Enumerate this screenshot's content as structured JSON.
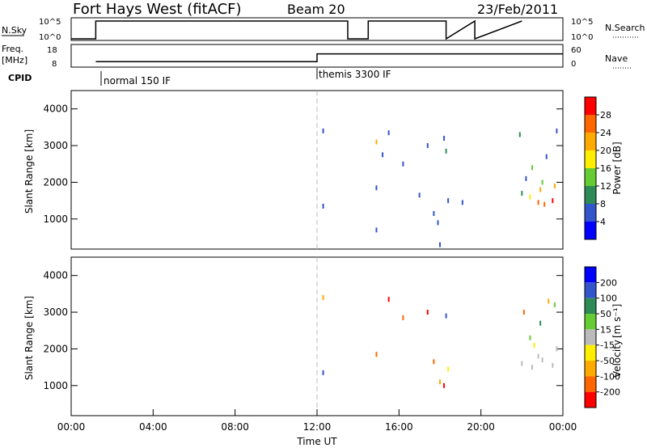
{
  "title": "Fort Hays West (fitACF)",
  "beam": "Beam 20",
  "date": "23/Feb/2011",
  "labels": {
    "nsky": "N.Sky",
    "nsearch": "N.Search",
    "freq": "Freq.",
    "freq_unit": "[MHz]",
    "nave": "Nave",
    "cpid": "CPID",
    "cpid_normal": "normal 150 IF",
    "cpid_themis": "themis 3300 IF",
    "x_axis": "Time UT",
    "y_axis": "Slant Range [km]",
    "power_bar": "Power [dB]",
    "velocity_bar": "Velocity"
  },
  "colors": {
    "power": [
      "#0000ff",
      "#3355cc",
      "#2e8b57",
      "#66cc33",
      "#ffee00",
      "#ffaa00",
      "#ff6600",
      "#ff0000"
    ],
    "velocity": [
      "#ff0000",
      "#ff6600",
      "#ffaa00",
      "#ffee00",
      "#bbbbbb",
      "#66cc33",
      "#2e8b57",
      "#3355cc",
      "#0000ff"
    ]
  },
  "chart_data": [
    {
      "type": "line",
      "name": "N.Sky / N.Search",
      "x_ticks": [
        "00:00",
        "04:00",
        "08:00",
        "12:00",
        "16:00",
        "20:00",
        "00:00"
      ],
      "ylabels_left": [
        "10^5",
        "10^0"
      ],
      "ylabels_right": [
        "10^5",
        "10^0"
      ],
      "x": [
        0,
        1.2,
        1.2,
        13.5,
        13.5,
        14.5,
        14.5,
        18.3,
        18.3,
        19.7,
        19.7,
        22.0
      ],
      "values": [
        0,
        0,
        5,
        5,
        0,
        0,
        5,
        5,
        0,
        5,
        0,
        5
      ]
    },
    {
      "type": "line",
      "name": "Freq / Nave",
      "ylabels_left": [
        "18",
        "8"
      ],
      "ylabels_right": [
        "60",
        "0"
      ],
      "x": [
        1.2,
        12.0,
        12.0,
        13.5,
        14.5,
        18.3,
        19.7,
        22.0,
        24.0
      ],
      "values": [
        10,
        10,
        14,
        14,
        14,
        14,
        14,
        14,
        14
      ]
    },
    {
      "type": "scatter",
      "title": "Power [dB]",
      "xlabel": "Time UT",
      "ylabel": "Slant Range [km]",
      "xlim": [
        0,
        24
      ],
      "ylim": [
        180,
        4500
      ],
      "yticks": [
        1000,
        2000,
        3000,
        4000
      ],
      "colorbar_ticks": [
        "28",
        "24",
        "20",
        "16",
        "12",
        "8",
        "4"
      ],
      "marker_line_x": 12.0,
      "points": [
        [
          12.3,
          3400,
          1
        ],
        [
          12.3,
          1350,
          1
        ],
        [
          14.9,
          1850,
          1
        ],
        [
          14.9,
          700,
          1
        ],
        [
          15.5,
          3350,
          1
        ],
        [
          15.2,
          2750,
          1
        ],
        [
          16.2,
          2500,
          1
        ],
        [
          17.0,
          1650,
          1
        ],
        [
          17.4,
          3000,
          1
        ],
        [
          17.7,
          1150,
          1
        ],
        [
          17.9,
          900,
          1
        ],
        [
          18.0,
          300,
          1
        ],
        [
          18.3,
          2850,
          2
        ],
        [
          18.4,
          1500,
          1
        ],
        [
          18.2,
          3200,
          1
        ],
        [
          19.1,
          1450,
          1
        ],
        [
          14.9,
          3100,
          5
        ],
        [
          21.9,
          3300,
          2
        ],
        [
          22.5,
          2400,
          3
        ],
        [
          23.1,
          1400,
          6
        ],
        [
          22.4,
          1600,
          4
        ],
        [
          22.9,
          1800,
          5
        ],
        [
          23.5,
          1500,
          7
        ],
        [
          22.0,
          1700,
          2
        ],
        [
          22.8,
          1450,
          6
        ],
        [
          23.2,
          2700,
          1
        ],
        [
          23.7,
          3400,
          1
        ],
        [
          22.2,
          2100,
          1
        ],
        [
          23.0,
          2000,
          3
        ],
        [
          23.6,
          1900,
          5
        ]
      ]
    },
    {
      "type": "scatter",
      "title": "Velocity [m s-1]",
      "xlabel": "Time UT",
      "ylabel": "Slant Range [km]",
      "xlim": [
        0,
        24
      ],
      "ylim": [
        180,
        4500
      ],
      "yticks": [
        1000,
        2000,
        3000,
        4000
      ],
      "colorbar_ticks": [
        "200",
        "100",
        "50",
        "15",
        "-15",
        "-50",
        "-100",
        "-200"
      ],
      "marker_line_x": 12.0,
      "points": [
        [
          12.3,
          3400,
          2
        ],
        [
          12.3,
          1350,
          7
        ],
        [
          14.9,
          1850,
          1
        ],
        [
          15.5,
          3350,
          0
        ],
        [
          16.2,
          2850,
          1
        ],
        [
          17.4,
          3000,
          0
        ],
        [
          17.7,
          1650,
          1
        ],
        [
          18.0,
          1100,
          2
        ],
        [
          18.3,
          2900,
          7
        ],
        [
          18.4,
          1450,
          3
        ],
        [
          18.2,
          1000,
          0
        ],
        [
          22.0,
          1600,
          4
        ],
        [
          22.5,
          1500,
          4
        ],
        [
          23.0,
          1700,
          4
        ],
        [
          23.5,
          1550,
          4
        ],
        [
          22.4,
          2300,
          5
        ],
        [
          22.9,
          2700,
          6
        ],
        [
          23.3,
          3300,
          2
        ],
        [
          23.6,
          3200,
          5
        ],
        [
          22.1,
          3000,
          1
        ],
        [
          22.8,
          1800,
          4
        ],
        [
          23.7,
          2000,
          4
        ],
        [
          22.6,
          2100,
          3
        ]
      ]
    }
  ]
}
